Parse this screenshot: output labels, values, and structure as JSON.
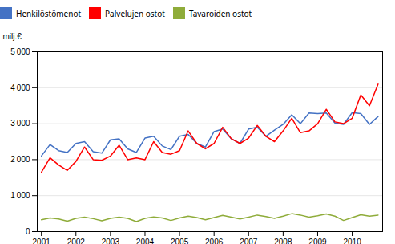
{
  "chart_data": {
    "type": "line",
    "ylabel": "milj.€",
    "x": [
      2001,
      2001.25,
      2001.5,
      2001.75,
      2002,
      2002.25,
      2002.5,
      2002.75,
      2003,
      2003.25,
      2003.5,
      2003.75,
      2004,
      2004.25,
      2004.5,
      2004.75,
      2005,
      2005.25,
      2005.5,
      2005.75,
      2006,
      2006.25,
      2006.5,
      2006.75,
      2007,
      2007.25,
      2007.5,
      2007.75,
      2008,
      2008.25,
      2008.5,
      2008.75,
      2009,
      2009.25,
      2009.5,
      2009.75,
      2010,
      2010.25,
      2010.5,
      2010.75
    ],
    "series": [
      {
        "name": "Henkilöstömenot",
        "color": "#4472c4",
        "values": [
          2100,
          2420,
          2250,
          2200,
          2450,
          2500,
          2220,
          2180,
          2550,
          2580,
          2300,
          2200,
          2600,
          2650,
          2380,
          2280,
          2650,
          2700,
          2450,
          2350,
          2780,
          2850,
          2580,
          2450,
          2850,
          2900,
          2650,
          2820,
          2980,
          3250,
          3000,
          3300,
          3280,
          3300,
          3020,
          2980,
          3310,
          3280,
          2980,
          3200
        ]
      },
      {
        "name": "Palvelujen ostot",
        "color": "#ff0000",
        "values": [
          1650,
          2050,
          1850,
          1700,
          1950,
          2350,
          2000,
          1980,
          2100,
          2400,
          2000,
          2050,
          2000,
          2500,
          2200,
          2150,
          2250,
          2800,
          2450,
          2300,
          2450,
          2900,
          2580,
          2450,
          2600,
          2950,
          2650,
          2500,
          2800,
          3150,
          2750,
          2800,
          3000,
          3400,
          3050,
          3000,
          3150,
          3800,
          3500,
          4100
        ]
      },
      {
        "name": "Tavaroiden ostot",
        "color": "#8fac3a",
        "values": [
          330,
          380,
          350,
          290,
          370,
          400,
          360,
          300,
          370,
          400,
          370,
          280,
          370,
          410,
          380,
          310,
          380,
          430,
          390,
          330,
          390,
          450,
          400,
          350,
          400,
          460,
          420,
          370,
          430,
          500,
          460,
          400,
          440,
          490,
          430,
          310,
          390,
          470,
          430,
          460
        ]
      }
    ],
    "xlim": [
      2000.88,
      2010.88
    ],
    "xticks": [
      2001,
      2002,
      2003,
      2004,
      2005,
      2006,
      2007,
      2008,
      2009,
      2010
    ],
    "ylim": [
      0,
      5000
    ],
    "yticks": [
      0,
      {
        "value": 1000,
        "label": "1 000"
      },
      {
        "value": 2000,
        "label": "2 000"
      },
      {
        "value": 3000,
        "label": "3 000"
      },
      {
        "value": 4000,
        "label": "4 000"
      },
      {
        "value": 5000,
        "label": "5 000"
      }
    ],
    "grid": true,
    "legend": "upper left"
  }
}
